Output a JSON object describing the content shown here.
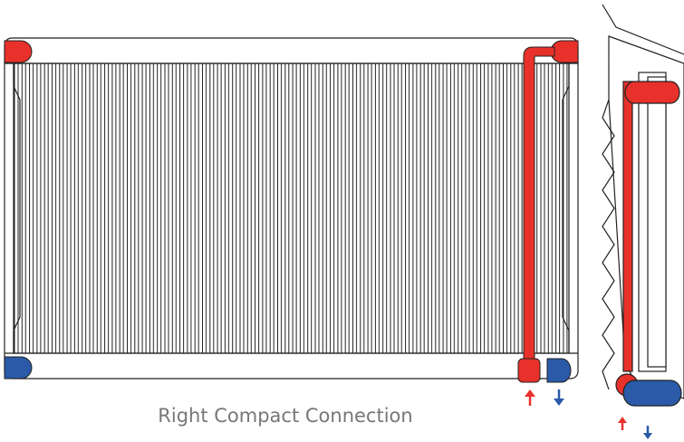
{
  "caption": "Right Compact Connection"
}
